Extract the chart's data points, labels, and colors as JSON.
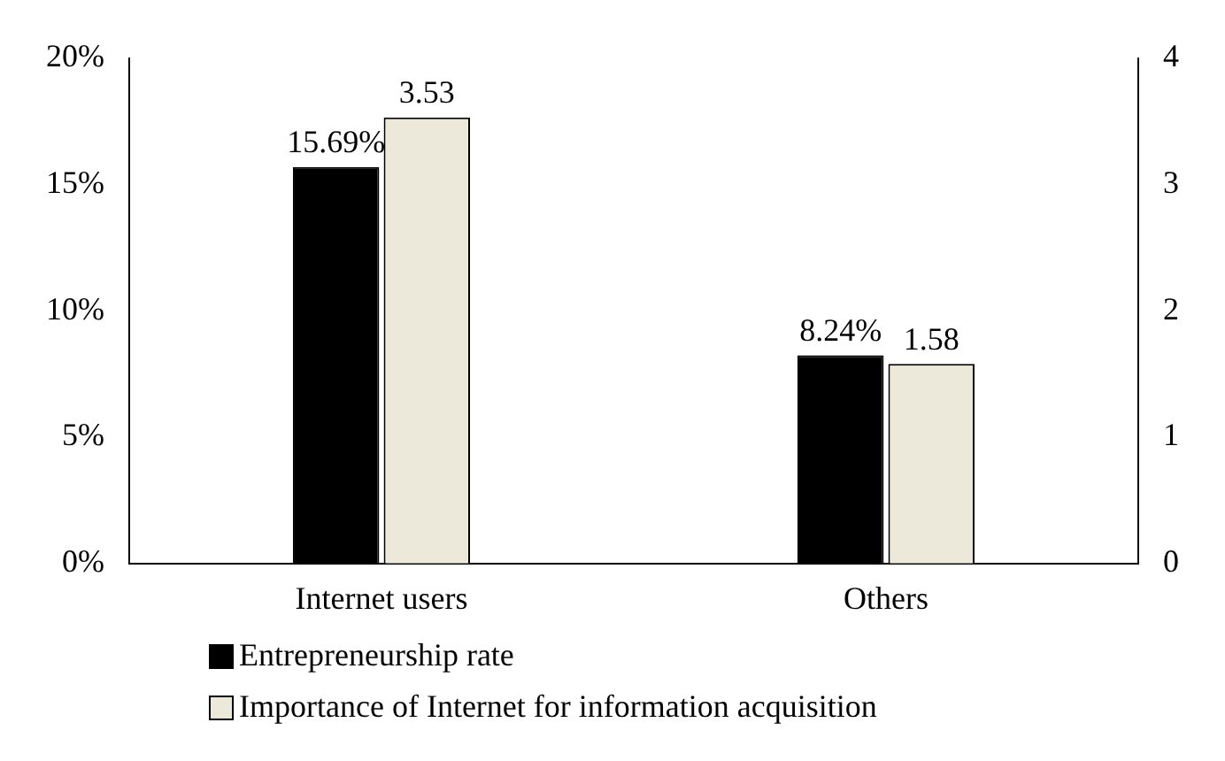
{
  "chart_data": {
    "type": "bar",
    "categories": [
      "Internet users",
      "Others"
    ],
    "series": [
      {
        "name": "Entrepreneurship rate",
        "color": "#000000",
        "values": [
          15.69,
          8.24
        ],
        "value_labels": [
          "15.69%",
          "8.24%"
        ]
      },
      {
        "name": "Importance of Internet for information acquisition",
        "color": "#ece8da",
        "values": [
          3.53,
          1.58
        ],
        "value_labels": [
          "3.53",
          "1.58"
        ],
        "axis": "y2"
      }
    ],
    "ylim": [
      0,
      20
    ],
    "yticks": [
      {
        "value": 0,
        "label": "0%"
      },
      {
        "value": 5,
        "label": "5%"
      },
      {
        "value": 10,
        "label": "10%"
      },
      {
        "value": 15,
        "label": "15%"
      },
      {
        "value": 20,
        "label": "20%"
      }
    ],
    "y2lim": [
      0,
      4
    ],
    "y2ticks": [
      0,
      1,
      2,
      3,
      4
    ],
    "grid": false,
    "legend": "bottom"
  }
}
